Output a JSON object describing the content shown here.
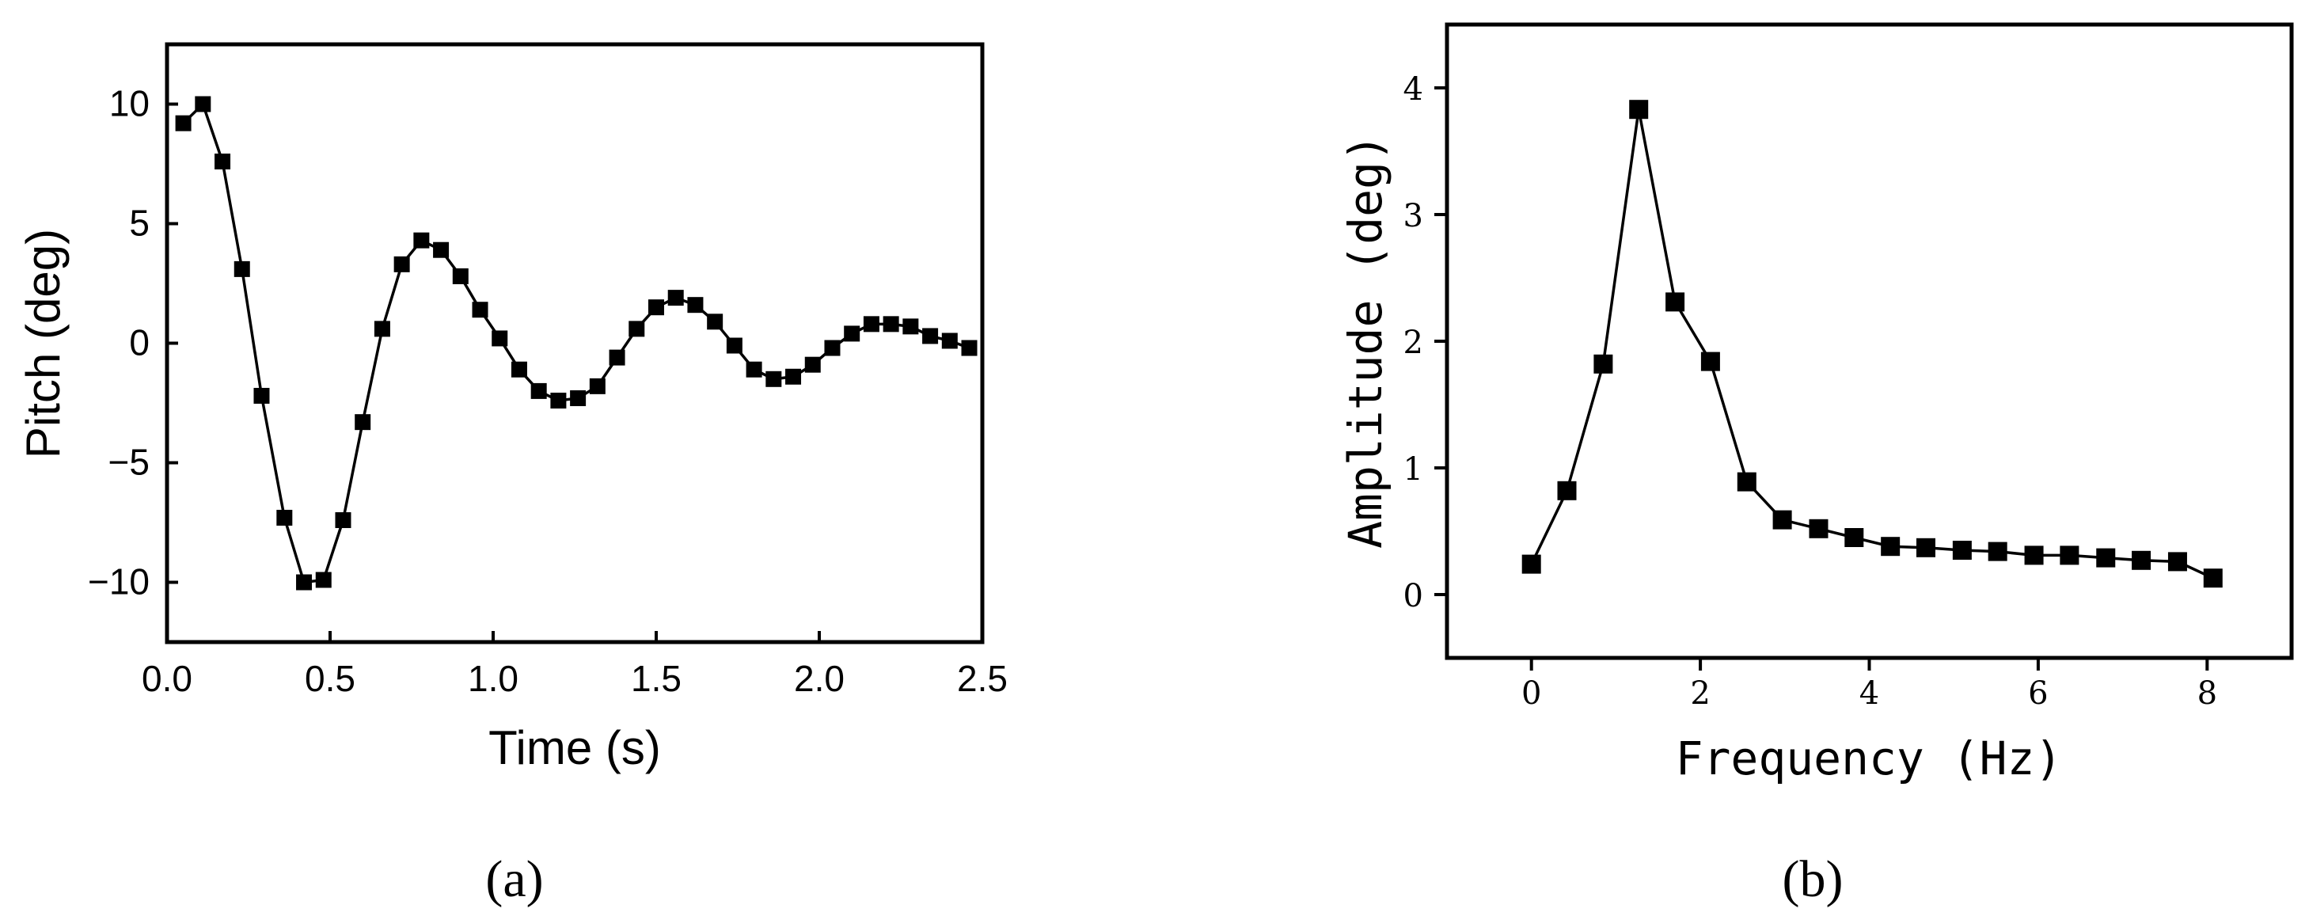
{
  "chart_data": [
    {
      "type": "line",
      "panel_label": "(a)",
      "title": "",
      "xlabel": "Time (s)",
      "ylabel": "Pitch (deg)",
      "xlim": [
        0.0,
        2.5
      ],
      "ylim": [
        -12.5,
        12.5
      ],
      "xticks": [
        0.0,
        0.5,
        1.0,
        1.5,
        2.0,
        2.5
      ],
      "xtick_labels": [
        "0.0",
        "0.5",
        "1.0",
        "1.5",
        "2.0",
        "2.5"
      ],
      "yticks": [
        -10,
        -5,
        0,
        5,
        10
      ],
      "ytick_labels": [
        "−10",
        "−5",
        "0",
        "5",
        "10"
      ],
      "grid": false,
      "legend": "none",
      "marker": "square",
      "color": "#000000",
      "x": [
        0.05,
        0.11,
        0.17,
        0.23,
        0.29,
        0.36,
        0.42,
        0.48,
        0.54,
        0.6,
        0.66,
        0.72,
        0.78,
        0.84,
        0.9,
        0.96,
        1.02,
        1.08,
        1.14,
        1.2,
        1.26,
        1.32,
        1.38,
        1.44,
        1.5,
        1.56,
        1.62,
        1.68,
        1.74,
        1.8,
        1.86,
        1.92,
        1.98,
        2.04,
        2.1,
        2.16,
        2.22,
        2.28,
        2.34,
        2.4,
        2.46
      ],
      "y": [
        9.2,
        10.0,
        7.6,
        3.1,
        -2.2,
        -7.3,
        -10.0,
        -9.9,
        -7.4,
        -3.3,
        0.6,
        3.3,
        4.3,
        3.9,
        2.8,
        1.4,
        0.2,
        -1.1,
        -2.0,
        -2.4,
        -2.3,
        -1.8,
        -0.6,
        0.6,
        1.5,
        1.9,
        1.6,
        0.9,
        -0.1,
        -1.1,
        -1.5,
        -1.4,
        -0.9,
        -0.2,
        0.4,
        0.8,
        0.8,
        0.7,
        0.3,
        0.1,
        -0.2
      ]
    },
    {
      "type": "line",
      "panel_label": "(b)",
      "title": "",
      "xlabel": "Frequency (Hz)",
      "ylabel": "Amplitude (deg)",
      "xlim": [
        -1,
        9
      ],
      "ylim": [
        -0.5,
        4.5
      ],
      "xticks": [
        0,
        2,
        4,
        6,
        8
      ],
      "xtick_labels": [
        "0",
        "2",
        "4",
        "6",
        "8"
      ],
      "yticks": [
        0,
        1,
        2,
        3,
        4
      ],
      "ytick_labels": [
        "0",
        "1",
        "2",
        "3",
        "4"
      ],
      "grid": false,
      "legend": "none",
      "marker": "square",
      "color": "#000000",
      "x": [
        0.0,
        0.42,
        0.85,
        1.27,
        1.7,
        2.12,
        2.55,
        2.97,
        3.4,
        3.82,
        4.25,
        4.67,
        5.1,
        5.52,
        5.95,
        6.37,
        6.8,
        7.22,
        7.65,
        8.07
      ],
      "y": [
        0.24,
        0.82,
        1.82,
        3.83,
        2.31,
        1.84,
        0.89,
        0.59,
        0.52,
        0.45,
        0.38,
        0.37,
        0.35,
        0.34,
        0.31,
        0.31,
        0.29,
        0.27,
        0.26,
        0.13
      ]
    }
  ]
}
